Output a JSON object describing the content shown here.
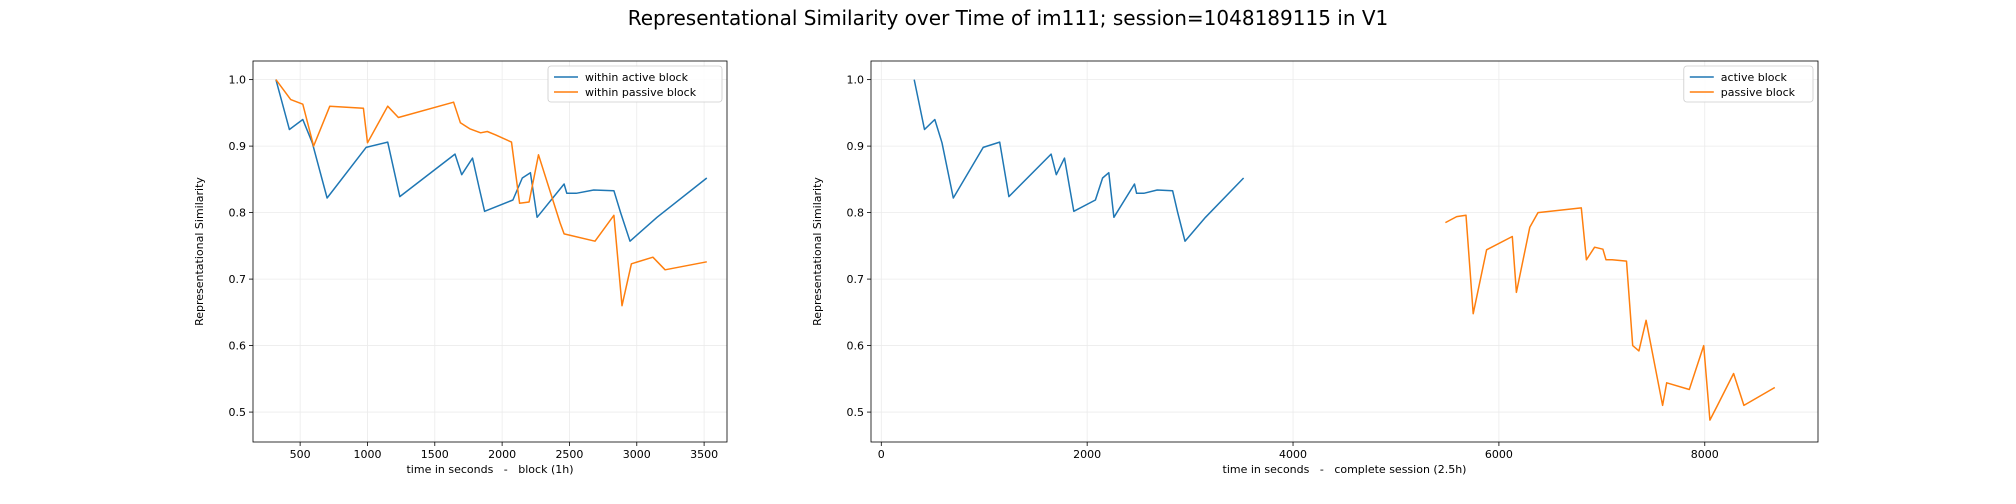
{
  "figure": {
    "title": "Representational Similarity over Time of im111; session=1048189115 in V1"
  },
  "colors": {
    "series1": "#1f77b4",
    "series2": "#ff7f0e",
    "grid": "#ebebeb",
    "axis": "#000000"
  },
  "chart_data": [
    {
      "type": "line",
      "xlabel": "time in seconds   -   block (1h)",
      "ylabel": "Representational Similarity",
      "xlim": [
        150,
        3670
      ],
      "ylim": [
        0.455,
        1.028
      ],
      "xticks": [
        500,
        1000,
        1500,
        2000,
        2500,
        3000,
        3500
      ],
      "yticks": [
        0.5,
        0.6,
        0.7,
        0.8,
        0.9,
        1.0
      ],
      "grid": true,
      "legend_position": "top-right",
      "series": [
        {
          "name": "within active block",
          "color": "#1f77b4",
          "x": [
            320,
            420,
            520,
            590,
            700,
            990,
            1150,
            1240,
            1650,
            1700,
            1780,
            1830,
            1870,
            2080,
            2150,
            2210,
            2260,
            2460,
            2480,
            2550,
            2680,
            2830,
            2880,
            2950,
            3150,
            3520
          ],
          "y": [
            1.0,
            0.925,
            0.94,
            0.905,
            0.822,
            0.898,
            0.906,
            0.824,
            0.888,
            0.857,
            0.882,
            0.837,
            0.802,
            0.819,
            0.852,
            0.86,
            0.793,
            0.843,
            0.829,
            0.829,
            0.834,
            0.833,
            0.8,
            0.757,
            0.793,
            0.852
          ]
        },
        {
          "name": "within passive block",
          "color": "#ff7f0e",
          "x": [
            320,
            430,
            520,
            600,
            720,
            970,
            1000,
            1150,
            1230,
            1640,
            1690,
            1760,
            1840,
            1890,
            1950,
            2070,
            2130,
            2200,
            2270,
            2430,
            2460,
            2690,
            2830,
            2890,
            2960,
            3120,
            3210,
            3520
          ],
          "y": [
            1.0,
            0.97,
            0.963,
            0.9,
            0.96,
            0.957,
            0.905,
            0.96,
            0.943,
            0.966,
            0.935,
            0.926,
            0.92,
            0.922,
            0.917,
            0.906,
            0.814,
            0.816,
            0.887,
            0.785,
            0.768,
            0.757,
            0.796,
            0.66,
            0.723,
            0.733,
            0.714,
            0.726
          ]
        }
      ]
    },
    {
      "type": "line",
      "xlabel": "time in seconds   -   complete session (2.5h)",
      "ylabel": "Representational Similarity",
      "xlim": [
        -100,
        9100
      ],
      "ylim": [
        0.455,
        1.028
      ],
      "xticks": [
        0,
        2000,
        4000,
        6000,
        8000
      ],
      "yticks": [
        0.5,
        0.6,
        0.7,
        0.8,
        0.9,
        1.0
      ],
      "grid": true,
      "legend_position": "top-right",
      "series": [
        {
          "name": "active block",
          "color": "#1f77b4",
          "x": [
            320,
            420,
            520,
            590,
            700,
            990,
            1150,
            1240,
            1650,
            1700,
            1780,
            1830,
            1870,
            2080,
            2150,
            2210,
            2260,
            2460,
            2480,
            2550,
            2680,
            2830,
            2880,
            2950,
            3150,
            3520
          ],
          "y": [
            1.0,
            0.925,
            0.94,
            0.905,
            0.822,
            0.898,
            0.906,
            0.824,
            0.888,
            0.857,
            0.882,
            0.837,
            0.802,
            0.819,
            0.852,
            0.86,
            0.793,
            0.843,
            0.829,
            0.829,
            0.834,
            0.833,
            0.8,
            0.757,
            0.793,
            0.852
          ]
        },
        {
          "name": "passive block",
          "color": "#ff7f0e",
          "x": [
            5480,
            5590,
            5680,
            5750,
            5880,
            6130,
            6170,
            6300,
            6380,
            6800,
            6850,
            6930,
            7010,
            7040,
            7100,
            7240,
            7300,
            7360,
            7430,
            7590,
            7630,
            7850,
            7990,
            8050,
            8120,
            8280,
            8380,
            8680
          ],
          "y": [
            0.785,
            0.794,
            0.796,
            0.648,
            0.744,
            0.764,
            0.68,
            0.778,
            0.8,
            0.807,
            0.729,
            0.748,
            0.745,
            0.729,
            0.729,
            0.727,
            0.6,
            0.592,
            0.638,
            0.51,
            0.544,
            0.534,
            0.6,
            0.488,
            0.509,
            0.558,
            0.51,
            0.537
          ]
        }
      ]
    }
  ]
}
